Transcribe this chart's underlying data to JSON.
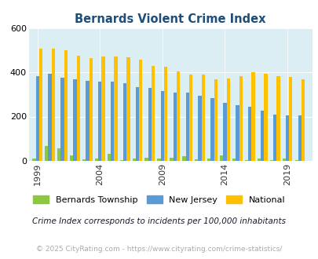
{
  "title": "Bernards Violent Crime Index",
  "years": [
    1999,
    2000,
    2001,
    2002,
    2003,
    2004,
    2005,
    2006,
    2007,
    2008,
    2009,
    2010,
    2011,
    2012,
    2013,
    2014,
    2015,
    2016,
    2017,
    2018,
    2019,
    2020
  ],
  "bernards": [
    8,
    65,
    55,
    25,
    5,
    8,
    32,
    3,
    8,
    12,
    10,
    12,
    20,
    5,
    8,
    25,
    10,
    3,
    8,
    3,
    8,
    3
  ],
  "new_jersey": [
    385,
    395,
    378,
    370,
    362,
    360,
    360,
    352,
    335,
    330,
    315,
    310,
    308,
    293,
    282,
    263,
    253,
    243,
    228,
    208,
    207,
    207
  ],
  "national": [
    510,
    510,
    500,
    477,
    465,
    472,
    473,
    468,
    458,
    430,
    428,
    405,
    390,
    390,
    368,
    373,
    383,
    400,
    394,
    382,
    379,
    370
  ],
  "xlim_min": 1998.3,
  "xlim_max": 2021.0,
  "ylim_min": 0,
  "ylim_max": 600,
  "yticks": [
    0,
    200,
    400,
    600
  ],
  "xtick_labels": [
    "1999",
    "2004",
    "2009",
    "2014",
    "2019"
  ],
  "xtick_positions": [
    1999,
    2004,
    2009,
    2014,
    2019
  ],
  "color_bernards": "#8dc63f",
  "color_nj": "#5b9bd5",
  "color_national": "#ffc000",
  "bg_color": "#daeef3",
  "legend_label_bernards": "Bernards Township",
  "legend_label_nj": "New Jersey",
  "legend_label_national": "National",
  "footnote1": "Crime Index corresponds to incidents per 100,000 inhabitants",
  "footnote2": "© 2025 CityRating.com - https://www.cityrating.com/crime-statistics/",
  "title_color": "#1f4e79",
  "footnote1_color": "#1a1a2e",
  "footnote2_color": "#aaaaaa"
}
